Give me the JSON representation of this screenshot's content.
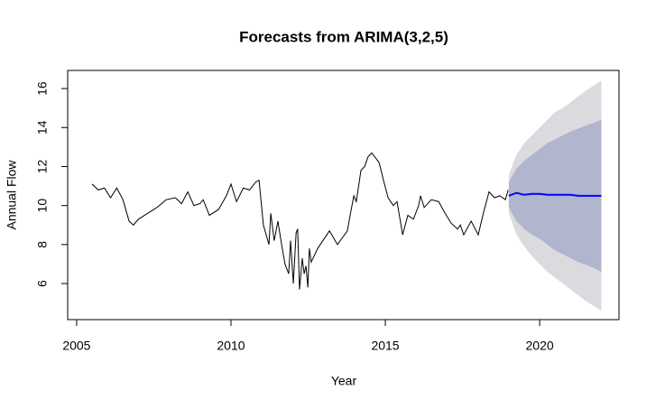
{
  "chart_data": {
    "type": "line",
    "title": "Forecasts from ARIMA(3,2,5)",
    "x_label": "Year",
    "y_label": "Annual Flow",
    "xlim": [
      2004.71,
      2022.57
    ],
    "ylim": [
      4.15,
      16.93
    ],
    "xticks": [
      2005,
      2010,
      2015,
      2020
    ],
    "yticks": [
      6,
      8,
      10,
      12,
      14,
      16
    ],
    "grid": false,
    "series": [
      {
        "color": "#000000",
        "x": [
          2005.5,
          2005.7,
          2005.9,
          2006.1,
          2006.3,
          2006.5,
          2006.7,
          2006.84,
          2007.0,
          2007.3,
          2007.6,
          2007.9,
          2008.2,
          2008.4,
          2008.6,
          2008.8,
          2009.0,
          2009.1,
          2009.3,
          2009.6,
          2009.85,
          2010.0,
          2010.18,
          2010.4,
          2010.6,
          2010.8,
          2010.91,
          2011.05,
          2011.23,
          2011.29,
          2011.4,
          2011.52,
          2011.64,
          2011.75,
          2011.87,
          2011.93,
          2012.02,
          2012.11,
          2012.16,
          2012.22,
          2012.31,
          2012.37,
          2012.43,
          2012.49,
          2012.54,
          2012.6,
          2012.81,
          2013.19,
          2013.45,
          2013.77,
          2013.86,
          2013.98,
          2014.06,
          2014.21,
          2014.33,
          2014.44,
          2014.56,
          2014.8,
          2014.94,
          2015.09,
          2015.26,
          2015.38,
          2015.56,
          2015.73,
          2015.91,
          2016.08,
          2016.14,
          2016.26,
          2016.49,
          2016.73,
          2016.9,
          2017.13,
          2017.34,
          2017.43,
          2017.54,
          2017.78,
          2018.01,
          2018.19,
          2018.36,
          2018.54,
          2018.71,
          2018.89,
          2018.98
        ],
        "values": [
          11.1,
          10.8,
          10.9,
          10.4,
          10.9,
          10.3,
          9.2,
          9.0,
          9.3,
          9.6,
          9.9,
          10.3,
          10.4,
          10.1,
          10.7,
          10.0,
          10.1,
          10.3,
          9.5,
          9.8,
          10.5,
          11.1,
          10.2,
          10.9,
          10.8,
          11.2,
          11.3,
          9.0,
          8.0,
          9.6,
          8.2,
          9.2,
          8.0,
          7.0,
          6.5,
          8.2,
          6.0,
          8.6,
          8.8,
          5.7,
          7.3,
          6.5,
          6.9,
          5.8,
          7.8,
          7.1,
          7.8,
          8.7,
          8.0,
          8.7,
          9.5,
          10.5,
          10.2,
          11.8,
          12.0,
          12.5,
          12.7,
          12.2,
          11.3,
          10.4,
          10.0,
          10.2,
          8.5,
          9.5,
          9.3,
          10.0,
          10.5,
          9.9,
          10.3,
          10.2,
          9.7,
          9.1,
          8.8,
          9.0,
          8.5,
          9.2,
          8.5,
          9.7,
          10.7,
          10.4,
          10.5,
          10.3,
          10.8
        ]
      },
      {
        "color": "#0000ff",
        "x": [
          2019.0,
          2019.25,
          2019.5,
          2019.75,
          2020.0,
          2020.25,
          2020.5,
          2020.75,
          2021.0,
          2021.25,
          2021.5,
          2021.75,
          2022.0
        ],
        "values": [
          10.5,
          10.65,
          10.55,
          10.6,
          10.6,
          10.55,
          10.55,
          10.55,
          10.55,
          10.5,
          10.5,
          10.5,
          10.5
        ],
        "lower_80": [
          9.9,
          9.2,
          8.8,
          8.5,
          8.3,
          8.0,
          7.7,
          7.5,
          7.3,
          7.1,
          6.95,
          6.8,
          6.6
        ],
        "upper_80": [
          11.2,
          11.9,
          12.3,
          12.6,
          12.9,
          13.2,
          13.4,
          13.6,
          13.8,
          13.95,
          14.1,
          14.25,
          14.4
        ],
        "lower_95": [
          9.6,
          8.5,
          7.9,
          7.4,
          7.0,
          6.6,
          6.3,
          6.0,
          5.7,
          5.4,
          5.1,
          4.85,
          4.6
        ],
        "upper_95": [
          11.6,
          12.6,
          13.2,
          13.6,
          14.0,
          14.4,
          14.8,
          15.0,
          15.3,
          15.6,
          15.9,
          16.15,
          16.4
        ],
        "color_80": "#b1b5ce",
        "color_95": "#dbdbdf"
      }
    ]
  }
}
